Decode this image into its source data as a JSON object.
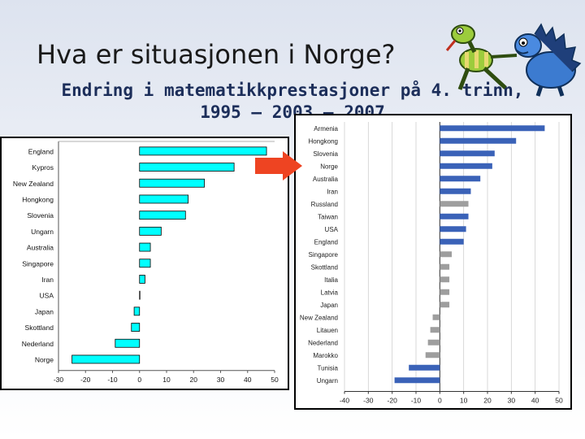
{
  "slide": {
    "title": "Hva er situasjonen i Norge?",
    "subtitle_line1": "Endring i matematikkprestasjoner på 4. trinn,",
    "subtitle_line2": "1995 – 2003 – 2007"
  },
  "colors": {
    "left_bar": "#00ffff",
    "right_bar_blue": "#3a62b8",
    "right_bar_gray": "#9e9e9e",
    "arrow": "#ee4422"
  },
  "icons": [
    "dinosaur-cartoon-icon",
    "arrow-right-icon"
  ],
  "chart_data": [
    {
      "type": "bar",
      "orientation": "horizontal",
      "categories": [
        "England",
        "Kypros",
        "New Zealand",
        "Hongkong",
        "Slovenia",
        "Ungarn",
        "Australia",
        "Singapore",
        "Iran",
        "USA",
        "Japan",
        "Skottland",
        "Nederland",
        "Norge"
      ],
      "values": [
        47,
        35,
        24,
        18,
        17,
        8,
        4,
        4,
        2,
        0,
        -2,
        -3,
        -9,
        -25
      ],
      "xlim": [
        -30,
        50
      ],
      "xticks": [
        "-30",
        "-20",
        "-10",
        "0",
        "10",
        "20",
        "30",
        "40",
        "50"
      ],
      "xtick_values": [
        -30,
        -20,
        -10,
        0,
        10,
        20,
        30,
        40,
        50
      ],
      "grid": false,
      "bar_color": "#00ffff"
    },
    {
      "type": "bar",
      "orientation": "horizontal",
      "categories": [
        "Armenia",
        "Hongkong",
        "Slovenia",
        "Norge",
        "Australia",
        "Iran",
        "Russland",
        "Taiwan",
        "USA",
        "England",
        "Singapore",
        "Skottland",
        "Italia",
        "Latvia",
        "Japan",
        "New Zealand",
        "Litauen",
        "Nederland",
        "Marokko",
        "Tunisia",
        "Ungarn"
      ],
      "values": [
        44,
        32,
        23,
        22,
        17,
        13,
        12,
        12,
        11,
        10,
        5,
        4,
        4,
        4,
        4,
        -3,
        -4,
        -5,
        -6,
        -13,
        -19
      ],
      "significant": [
        true,
        true,
        true,
        true,
        true,
        true,
        false,
        true,
        true,
        true,
        false,
        false,
        false,
        false,
        false,
        false,
        false,
        false,
        false,
        true,
        true
      ],
      "xlim": [
        -40,
        50
      ],
      "xticks": [
        "-40",
        "-30",
        "-20",
        "-10",
        "0",
        "10",
        "20",
        "30",
        "40",
        "50"
      ],
      "xtick_values": [
        -40,
        -30,
        -20,
        -10,
        0,
        10,
        20,
        30,
        40,
        50
      ],
      "grid": true
    }
  ]
}
